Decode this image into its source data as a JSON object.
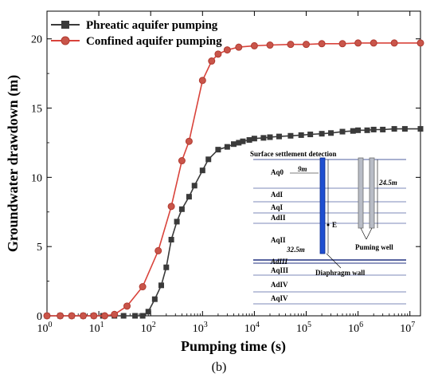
{
  "chart_data": {
    "type": "scatter",
    "xlabel": "Pumping time (s)",
    "ylabel": "Groundwater drawdown (m)",
    "x_scale": "log",
    "xlim": [
      1,
      16000000
    ],
    "ylim": [
      0,
      22
    ],
    "x_ticks": [
      {
        "value": 1,
        "base": "10",
        "exp": "0"
      },
      {
        "value": 10,
        "base": "10",
        "exp": "1"
      },
      {
        "value": 100,
        "base": "10",
        "exp": "2"
      },
      {
        "value": 1000,
        "base": "10",
        "exp": "3"
      },
      {
        "value": 10000,
        "base": "10",
        "exp": "4"
      },
      {
        "value": 100000,
        "base": "10",
        "exp": "5"
      },
      {
        "value": 1000000,
        "base": "10",
        "exp": "6"
      },
      {
        "value": 10000000,
        "base": "10",
        "exp": "7"
      }
    ],
    "y_ticks": [
      {
        "value": 0,
        "label": "0"
      },
      {
        "value": 5,
        "label": "5"
      },
      {
        "value": 10,
        "label": "10"
      },
      {
        "value": 15,
        "label": "15"
      },
      {
        "value": 20,
        "label": "20"
      }
    ],
    "grid": false,
    "legend_position": "top-left",
    "series": [
      {
        "name": "Phreatic aquifer pumping",
        "color": "#3a3a3a",
        "marker": "square",
        "x": [
          1,
          1.8,
          3,
          5,
          8,
          12,
          20,
          30,
          50,
          70,
          90,
          120,
          160,
          200,
          250,
          320,
          400,
          550,
          700,
          1000,
          1300,
          2000,
          3000,
          4000,
          5000,
          6000,
          8000,
          10000,
          15000,
          20000,
          30000,
          50000,
          80000,
          120000,
          200000,
          300000,
          500000,
          800000,
          1000000,
          1500000,
          2000000,
          3000000,
          5000000,
          8000000,
          16000000
        ],
        "y": [
          0,
          0,
          0,
          0,
          0,
          0,
          0,
          0,
          0,
          0,
          0.3,
          1.2,
          2.2,
          3.5,
          5.5,
          6.8,
          7.7,
          8.6,
          9.4,
          10.5,
          11.3,
          12.0,
          12.2,
          12.4,
          12.5,
          12.6,
          12.7,
          12.8,
          12.85,
          12.9,
          12.95,
          13.0,
          13.05,
          13.1,
          13.15,
          13.2,
          13.3,
          13.35,
          13.4,
          13.4,
          13.45,
          13.45,
          13.5,
          13.5,
          13.5
        ]
      },
      {
        "name": "Confined aquifer pumping",
        "color": "#d9433b",
        "marker": "circle",
        "x": [
          1,
          1.8,
          3,
          5,
          8,
          13,
          20,
          35,
          70,
          140,
          250,
          400,
          550,
          1000,
          1500,
          2000,
          3000,
          5000,
          10000,
          20000,
          50000,
          100000,
          200000,
          500000,
          1000000,
          2000000,
          5000000,
          16000000
        ],
        "y": [
          0,
          0,
          0,
          0,
          0,
          0,
          0.1,
          0.7,
          2.1,
          4.7,
          7.9,
          11.2,
          12.6,
          17.0,
          18.4,
          18.9,
          19.2,
          19.4,
          19.5,
          19.55,
          19.6,
          19.6,
          19.65,
          19.65,
          19.7,
          19.7,
          19.7,
          19.7
        ]
      }
    ]
  },
  "inset": {
    "title": "Surface settlement detection",
    "layers": [
      "Aq0",
      "AdI",
      "AqI",
      "AdII",
      "AqII",
      "AdIII",
      "AqIII",
      "AdIV",
      "AqIV"
    ],
    "dim_wall_top": "9m",
    "dim_well": "24.5m",
    "dim_wall": "32.5m",
    "point_label": "E",
    "well_label": "Puming well",
    "wall_label": "Diaphragm wall"
  },
  "caption": "(b)"
}
